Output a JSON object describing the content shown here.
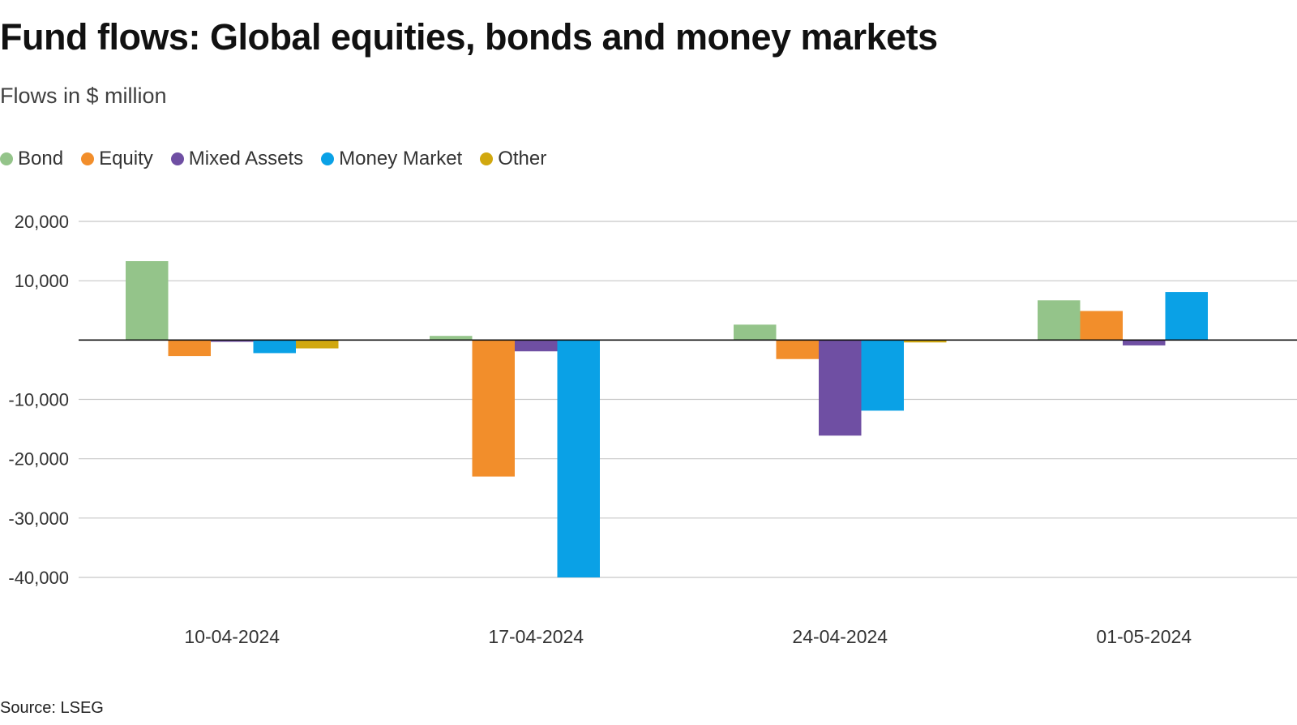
{
  "title": "Fund flows: Global equities, bonds and money markets",
  "subtitle": "Flows in $ million",
  "source": "Source: LSEG",
  "chart_data": {
    "type": "bar",
    "title": "Fund flows: Global equities, bonds and money markets",
    "subtitle": "Flows in $ million",
    "xlabel": "",
    "ylabel": "Flows in $ million",
    "categories": [
      "10-04-2024",
      "17-04-2024",
      "24-04-2024",
      "01-05-2024"
    ],
    "ylim": [
      -40000,
      20000
    ],
    "yticks": [
      20000,
      10000,
      -10000,
      -20000,
      -30000,
      -40000
    ],
    "ytick_labels": [
      "20,000",
      "10,000",
      "-10,000",
      "-20,000",
      "-30,000",
      "-40,000"
    ],
    "grid": true,
    "legend_position": "top-left",
    "series": [
      {
        "name": "Bond",
        "color": "#94c48a",
        "values": [
          13300,
          700,
          2600,
          6700
        ]
      },
      {
        "name": "Equity",
        "color": "#f28e2b",
        "values": [
          -2700,
          -23000,
          -3200,
          4900
        ]
      },
      {
        "name": "Mixed Assets",
        "color": "#6f4fa3",
        "values": [
          -300,
          -1900,
          -16100,
          -900
        ]
      },
      {
        "name": "Money Market",
        "color": "#0aa1e6",
        "values": [
          -2200,
          -40000,
          -11900,
          8100
        ]
      },
      {
        "name": "Other",
        "color": "#d1a80f",
        "values": [
          -1400,
          0,
          -400,
          0
        ]
      }
    ]
  }
}
